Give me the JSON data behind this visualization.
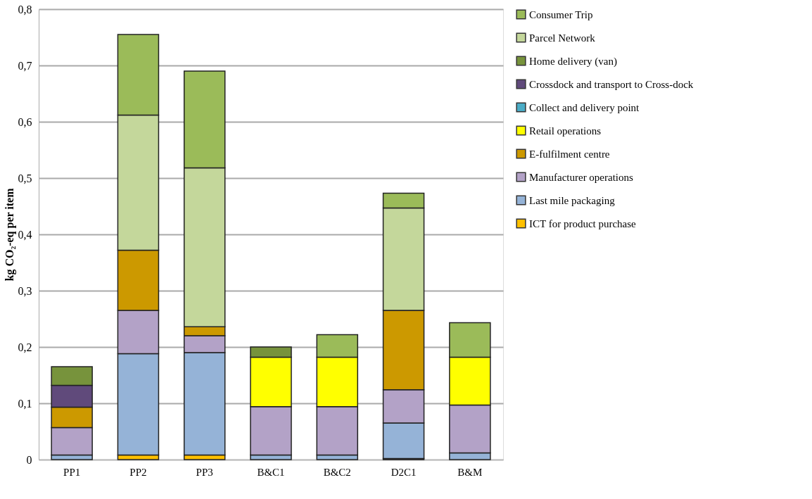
{
  "chart_data": {
    "type": "bar",
    "stacked": true,
    "ylabel": "kg CO₂-eq per item",
    "categories": [
      "PP1",
      "PP2",
      "PP3",
      "B&C1",
      "B&C2",
      "D2C1",
      "B&M"
    ],
    "ylim": [
      0,
      0.8
    ],
    "yticks": [
      {
        "value": 0,
        "label": "0"
      },
      {
        "value": 0.1,
        "label": "0,1"
      },
      {
        "value": 0.2,
        "label": "0,2"
      },
      {
        "value": 0.3,
        "label": "0,3"
      },
      {
        "value": 0.4,
        "label": "0,4"
      },
      {
        "value": 0.5,
        "label": "0,5"
      },
      {
        "value": 0.6,
        "label": "0,6"
      },
      {
        "value": 0.7,
        "label": "0,7"
      },
      {
        "value": 0.8,
        "label": "0,8"
      }
    ],
    "grid": "y",
    "legend": "right",
    "series": [
      {
        "name": "ICT for product purchase",
        "color": "#ffc000",
        "values": [
          null,
          0.008,
          0.008,
          null,
          null,
          0.002,
          null
        ]
      },
      {
        "name": "Last mile packaging",
        "color": "#95b3d7",
        "values": [
          0.008,
          0.18,
          0.182,
          0.008,
          0.008,
          0.063,
          0.012
        ]
      },
      {
        "name": "Manufacturer operations",
        "color": "#b3a2c7",
        "values": [
          0.049,
          0.077,
          0.03,
          0.086,
          0.086,
          0.059,
          0.085
        ]
      },
      {
        "name": "E-fulfilment centre",
        "color": "#cc9900",
        "values": [
          0.036,
          0.107,
          0.016,
          null,
          null,
          0.141,
          null
        ]
      },
      {
        "name": "Retail operations",
        "color": "#ffff00",
        "values": [
          null,
          null,
          null,
          0.088,
          0.088,
          null,
          0.085
        ]
      },
      {
        "name": "Collect and delivery point",
        "color": "#4bacc6",
        "values": [
          null,
          null,
          null,
          null,
          null,
          null,
          null
        ]
      },
      {
        "name": "Crossdock and transport to Cross-dock",
        "color": "#604a7b",
        "values": [
          0.039,
          null,
          null,
          null,
          null,
          null,
          null
        ]
      },
      {
        "name": "Home delivery (van)",
        "color": "#77933c",
        "values": [
          0.033,
          null,
          null,
          0.018,
          null,
          null,
          null
        ]
      },
      {
        "name": "Parcel Network",
        "color": "#c4d79b",
        "values": [
          null,
          0.24,
          0.282,
          null,
          null,
          0.182,
          null
        ]
      },
      {
        "name": "Consumer Trip",
        "color": "#9bbb59",
        "values": [
          null,
          0.143,
          0.172,
          null,
          0.04,
          0.026,
          0.061
        ]
      }
    ]
  }
}
